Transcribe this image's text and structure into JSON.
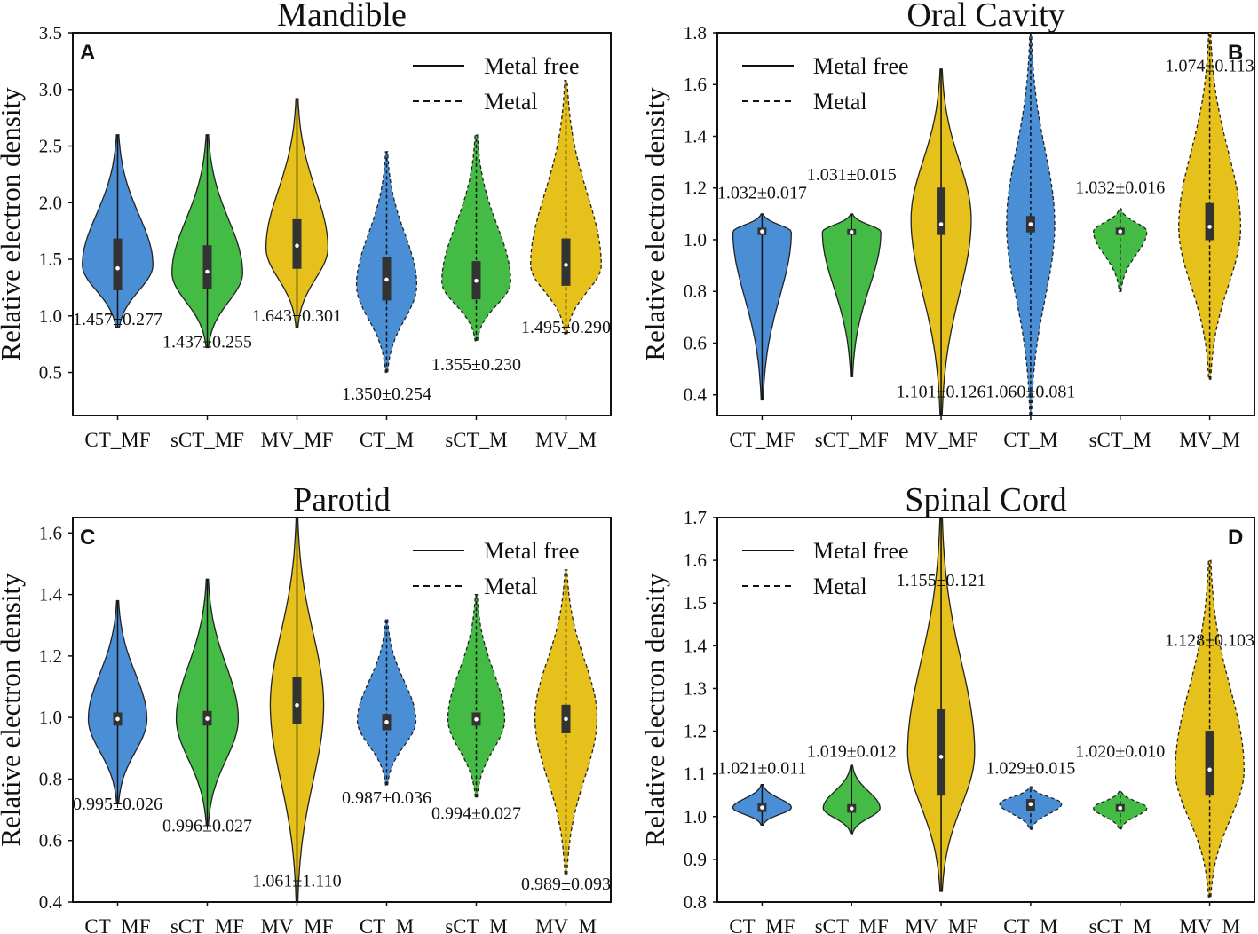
{
  "colors": {
    "blue": "#4a8fd6",
    "green": "#44bb44",
    "yellow": "#e6c11c",
    "outline": "#222222"
  },
  "legend": {
    "solid": "Metal free",
    "dashed": "Metal"
  },
  "ylabel": "Relative electron density",
  "chart_data": [
    {
      "type": "violin",
      "panel": "A",
      "title": "Mandible",
      "ylabel": "Relative electron density",
      "ylim": [
        0.12,
        3.5
      ],
      "yticks": [
        0.5,
        1.0,
        1.5,
        2.0,
        2.5,
        3.0,
        3.5
      ],
      "ytick_labels": [
        "0.5",
        "1.0",
        "1.5",
        "2.0",
        "2.5",
        "3.0",
        "3.5"
      ],
      "categories": [
        "CT_MF",
        "sCT_MF",
        "MV_MF",
        "CT_M",
        "sCT_M",
        "MV_M"
      ],
      "dashed": [
        false,
        false,
        false,
        true,
        true,
        true
      ],
      "colors": [
        "blue",
        "green",
        "yellow",
        "blue",
        "green",
        "yellow"
      ],
      "letter_position": "top-left",
      "legend_position": "top-right",
      "series": [
        {
          "name": "CT_MF",
          "min": 0.9,
          "max": 2.6,
          "q1": 1.23,
          "median": 1.42,
          "q3": 1.68,
          "mode": 1.45,
          "width": 0.82,
          "label": "1.457±0.277",
          "label_y": 0.92
        },
        {
          "name": "sCT_MF",
          "min": 0.72,
          "max": 2.6,
          "q1": 1.24,
          "median": 1.39,
          "q3": 1.62,
          "mode": 1.38,
          "width": 0.82,
          "label": "1.437±0.255",
          "label_y": 0.72
        },
        {
          "name": "MV_MF",
          "min": 0.9,
          "max": 2.92,
          "q1": 1.42,
          "median": 1.62,
          "q3": 1.85,
          "mode": 1.6,
          "width": 0.72,
          "label": "1.643±0.301",
          "label_y": 0.95
        },
        {
          "name": "CT_M",
          "min": 0.5,
          "max": 2.45,
          "q1": 1.14,
          "median": 1.32,
          "q3": 1.52,
          "mode": 1.27,
          "width": 0.7,
          "label": "1.350±0.254",
          "label_y": 0.26
        },
        {
          "name": "sCT_M",
          "min": 0.78,
          "max": 2.6,
          "q1": 1.15,
          "median": 1.31,
          "q3": 1.48,
          "mode": 1.3,
          "width": 0.8,
          "label": "1.355±0.230",
          "label_y": 0.52
        },
        {
          "name": "MV_M",
          "min": 0.84,
          "max": 3.08,
          "q1": 1.27,
          "median": 1.45,
          "q3": 1.68,
          "mode": 1.45,
          "width": 0.82,
          "label": "1.495±0.290",
          "label_y": 0.85
        }
      ]
    },
    {
      "type": "violin",
      "panel": "B",
      "title": "Oral Cavity",
      "ylabel": "Relative electron density",
      "ylim": [
        0.32,
        1.8
      ],
      "yticks": [
        0.4,
        0.6,
        0.8,
        1.0,
        1.2,
        1.4,
        1.6,
        1.8
      ],
      "ytick_labels": [
        "0.4",
        "0.6",
        "0.8",
        "1.0",
        "1.2",
        "1.4",
        "1.6",
        "1.8"
      ],
      "categories": [
        "CT_MF",
        "sCT_MF",
        "MV_MF",
        "CT_M",
        "sCT_M",
        "MV_M"
      ],
      "dashed": [
        false,
        false,
        false,
        true,
        true,
        true
      ],
      "colors": [
        "blue",
        "green",
        "yellow",
        "blue",
        "green",
        "yellow"
      ],
      "letter_position": "top-right",
      "legend_position": "top-left",
      "series": [
        {
          "name": "CT_MF",
          "min": 0.38,
          "max": 1.1,
          "q1": 1.02,
          "median": 1.032,
          "q3": 1.045,
          "mode": 1.03,
          "width": 0.68,
          "label": "1.032±0.017",
          "label_y": 1.16
        },
        {
          "name": "sCT_MF",
          "min": 0.47,
          "max": 1.1,
          "q1": 1.02,
          "median": 1.03,
          "q3": 1.04,
          "mode": 1.03,
          "width": 0.68,
          "label": "1.031±0.015",
          "label_y": 1.23
        },
        {
          "name": "MV_MF",
          "min": 0.32,
          "max": 1.66,
          "q1": 1.02,
          "median": 1.06,
          "q3": 1.2,
          "mode": 1.08,
          "width": 0.7,
          "label": "1.101±0.126",
          "label_y": 0.39
        },
        {
          "name": "CT_M",
          "min": 0.32,
          "max": 1.8,
          "q1": 1.03,
          "median": 1.06,
          "q3": 1.09,
          "mode": 1.06,
          "width": 0.56,
          "label": "1.060±0.081",
          "label_y": 0.39
        },
        {
          "name": "sCT_M",
          "min": 0.8,
          "max": 1.12,
          "q1": 1.02,
          "median": 1.032,
          "q3": 1.045,
          "mode": 1.032,
          "width": 0.62,
          "label": "1.032±0.016",
          "label_y": 1.18
        },
        {
          "name": "MV_M",
          "min": 0.46,
          "max": 1.8,
          "q1": 1.0,
          "median": 1.05,
          "q3": 1.14,
          "mode": 1.05,
          "width": 0.72,
          "label": "1.074±0.113",
          "label_y": 1.65
        }
      ]
    },
    {
      "type": "violin",
      "panel": "C",
      "title": "Parotid",
      "ylabel": "Relative electron density",
      "ylim": [
        0.4,
        1.65
      ],
      "yticks": [
        0.4,
        0.6,
        0.8,
        1.0,
        1.2,
        1.4,
        1.6
      ],
      "ytick_labels": [
        "0.4",
        "0.6",
        "0.8",
        "1.0",
        "1.2",
        "1.4",
        "1.6"
      ],
      "categories": [
        "CT_MF",
        "sCT_MF",
        "MV_MF",
        "CT_M",
        "sCT_M",
        "MV_M"
      ],
      "dashed": [
        false,
        false,
        false,
        true,
        true,
        true
      ],
      "colors": [
        "blue",
        "green",
        "yellow",
        "blue",
        "green",
        "yellow"
      ],
      "letter_position": "top-left",
      "legend_position": "top-right",
      "series": [
        {
          "name": "CT_MF",
          "min": 0.72,
          "max": 1.38,
          "q1": 0.975,
          "median": 0.995,
          "q3": 1.015,
          "mode": 0.995,
          "width": 0.68,
          "label": "0.995±0.026",
          "label_y": 0.7
        },
        {
          "name": "sCT_MF",
          "min": 0.65,
          "max": 1.45,
          "q1": 0.975,
          "median": 0.996,
          "q3": 1.02,
          "mode": 0.996,
          "width": 0.72,
          "label": "0.996±0.027",
          "label_y": 0.63
        },
        {
          "name": "MV_MF",
          "min": 0.4,
          "max": 1.65,
          "q1": 0.98,
          "median": 1.04,
          "q3": 1.13,
          "mode": 1.04,
          "width": 0.62,
          "label": "1.061±1.110",
          "label_y": 0.45
        },
        {
          "name": "CT_M",
          "min": 0.78,
          "max": 1.32,
          "q1": 0.96,
          "median": 0.985,
          "q3": 1.01,
          "mode": 0.99,
          "width": 0.68,
          "label": "0.987±0.036",
          "label_y": 0.72
        },
        {
          "name": "sCT_M",
          "min": 0.74,
          "max": 1.4,
          "q1": 0.975,
          "median": 0.994,
          "q3": 1.015,
          "mode": 0.994,
          "width": 0.66,
          "label": "0.994±0.027",
          "label_y": 0.67
        },
        {
          "name": "MV_M",
          "min": 0.49,
          "max": 1.48,
          "q1": 0.95,
          "median": 0.995,
          "q3": 1.04,
          "mode": 1.0,
          "width": 0.72,
          "label": "0.989±0.093",
          "label_y": 0.44
        }
      ]
    },
    {
      "type": "violin",
      "panel": "D",
      "title": "Spinal Cord",
      "ylabel": "Relative electron density",
      "ylim": [
        0.8,
        1.7
      ],
      "yticks": [
        0.8,
        0.9,
        1.0,
        1.1,
        1.2,
        1.3,
        1.4,
        1.5,
        1.6,
        1.7
      ],
      "ytick_labels": [
        "0.8",
        "0.9",
        "1.0",
        "1.1",
        "1.2",
        "1.3",
        "1.4",
        "1.5",
        "1.6",
        "1.7"
      ],
      "categories": [
        "CT_MF",
        "sCT_MF",
        "MV_MF",
        "CT_M",
        "sCT_M",
        "MV_M"
      ],
      "dashed": [
        false,
        false,
        false,
        true,
        true,
        true
      ],
      "colors": [
        "blue",
        "green",
        "yellow",
        "blue",
        "green",
        "yellow"
      ],
      "letter_position": "top-right",
      "legend_position": "top-left",
      "series": [
        {
          "name": "CT_MF",
          "min": 0.98,
          "max": 1.075,
          "q1": 1.012,
          "median": 1.021,
          "q3": 1.03,
          "mode": 1.021,
          "width": 0.68,
          "label": "1.021±0.011",
          "label_y": 1.1
        },
        {
          "name": "sCT_MF",
          "min": 0.96,
          "max": 1.12,
          "q1": 1.01,
          "median": 1.019,
          "q3": 1.028,
          "mode": 1.02,
          "width": 0.66,
          "label": "1.019±0.012",
          "label_y": 1.14
        },
        {
          "name": "MV_MF",
          "min": 0.825,
          "max": 1.7,
          "q1": 1.05,
          "median": 1.14,
          "q3": 1.25,
          "mode": 1.15,
          "width": 0.78,
          "label": "1.155±0.121",
          "label_y": 1.54
        },
        {
          "name": "CT_M",
          "min": 0.97,
          "max": 1.07,
          "q1": 1.015,
          "median": 1.029,
          "q3": 1.04,
          "mode": 1.03,
          "width": 0.72,
          "label": "1.029±0.015",
          "label_y": 1.1
        },
        {
          "name": "sCT_M",
          "min": 0.97,
          "max": 1.06,
          "q1": 1.012,
          "median": 1.02,
          "q3": 1.028,
          "mode": 1.02,
          "width": 0.62,
          "label": "1.020±0.010",
          "label_y": 1.14
        },
        {
          "name": "MV_M",
          "min": 0.812,
          "max": 1.6,
          "q1": 1.05,
          "median": 1.11,
          "q3": 1.2,
          "mode": 1.11,
          "width": 0.8,
          "label": "1.128±0.103",
          "label_y": 1.4
        }
      ]
    }
  ]
}
